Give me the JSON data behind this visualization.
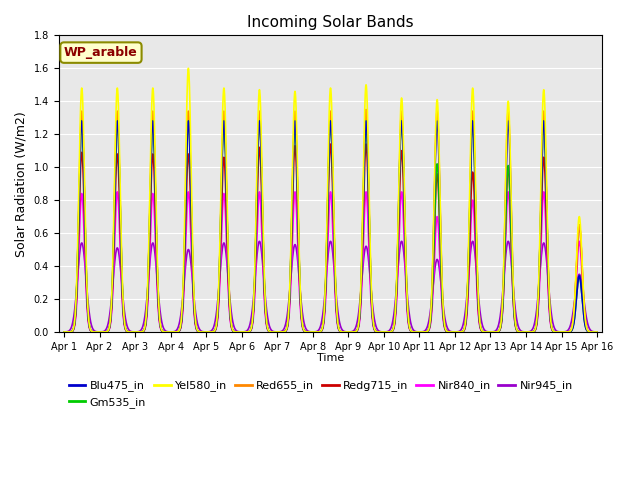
{
  "title": "Incoming Solar Bands",
  "xlabel": "Time",
  "ylabel": "Solar Radiation (W/m2)",
  "ylim": [
    0,
    1.8
  ],
  "annotation_text": "WP_arable",
  "annotation_box_color": "#FFFFCC",
  "annotation_text_color": "#8B0000",
  "annotation_border_color": "#8B8B00",
  "plot_bg_color": "#E8E8E8",
  "fig_bg_color": "#FFFFFF",
  "legend_entries": [
    {
      "label": "Blu475_in",
      "color": "#0000CC"
    },
    {
      "label": "Gm535_in",
      "color": "#00CC00"
    },
    {
      "label": "Yel580_in",
      "color": "#FFFF00"
    },
    {
      "label": "Red655_in",
      "color": "#FF8800"
    },
    {
      "label": "Redg715_in",
      "color": "#CC0000"
    },
    {
      "label": "Nir840_in",
      "color": "#FF00FF"
    },
    {
      "label": "Nir945_in",
      "color": "#9900CC"
    }
  ],
  "num_days": 15,
  "pts_per_day": 500,
  "sigma_days": 0.08,
  "sigma_wide_days": 0.12,
  "band_peaks_by_day": {
    "Yel580_in": [
      1.48,
      1.48,
      1.48,
      1.6,
      1.48,
      1.47,
      1.46,
      1.48,
      1.5,
      1.42,
      1.41,
      1.48,
      1.4,
      1.47,
      0.7
    ],
    "Red655_in": [
      1.34,
      1.34,
      1.34,
      1.34,
      1.34,
      1.34,
      1.34,
      1.34,
      1.35,
      1.34,
      1.34,
      1.34,
      1.34,
      1.34,
      0.65
    ],
    "Gm535_in": [
      1.28,
      1.28,
      1.28,
      1.28,
      1.28,
      1.28,
      1.28,
      1.28,
      1.28,
      1.28,
      1.02,
      1.28,
      1.01,
      1.28,
      0.34
    ],
    "Blu475_in": [
      1.28,
      1.28,
      1.28,
      1.28,
      1.28,
      1.28,
      1.28,
      1.28,
      1.28,
      1.28,
      1.28,
      1.28,
      1.28,
      1.28,
      0.34
    ],
    "Redg715_in": [
      1.09,
      1.08,
      1.08,
      1.08,
      1.06,
      1.12,
      1.13,
      1.14,
      1.14,
      1.1,
      0.96,
      0.97,
      1.0,
      1.06,
      0.65
    ],
    "Nir840_in": [
      0.84,
      0.85,
      0.84,
      0.85,
      0.84,
      0.85,
      0.85,
      0.85,
      0.85,
      0.85,
      0.7,
      0.8,
      0.85,
      0.85,
      0.55
    ],
    "Nir945_in": [
      0.54,
      0.51,
      0.54,
      0.5,
      0.54,
      0.55,
      0.53,
      0.55,
      0.52,
      0.55,
      0.44,
      0.55,
      0.55,
      0.54,
      0.35
    ]
  },
  "draw_order": [
    "Nir945_in",
    "Nir840_in",
    "Redg715_in",
    "Red655_in",
    "Gm535_in",
    "Blu475_in",
    "Yel580_in"
  ],
  "tick_labels": [
    "Apr 1",
    "Apr 2",
    "Apr 3",
    "Apr 4",
    "Apr 5",
    "Apr 6",
    "Apr 7",
    "Apr 8",
    "Apr 9",
    "Apr 10",
    "Apr 11",
    "Apr 12",
    "Apr 13",
    "Apr 14",
    "Apr 15",
    "Apr 16"
  ],
  "lw": 1.2
}
